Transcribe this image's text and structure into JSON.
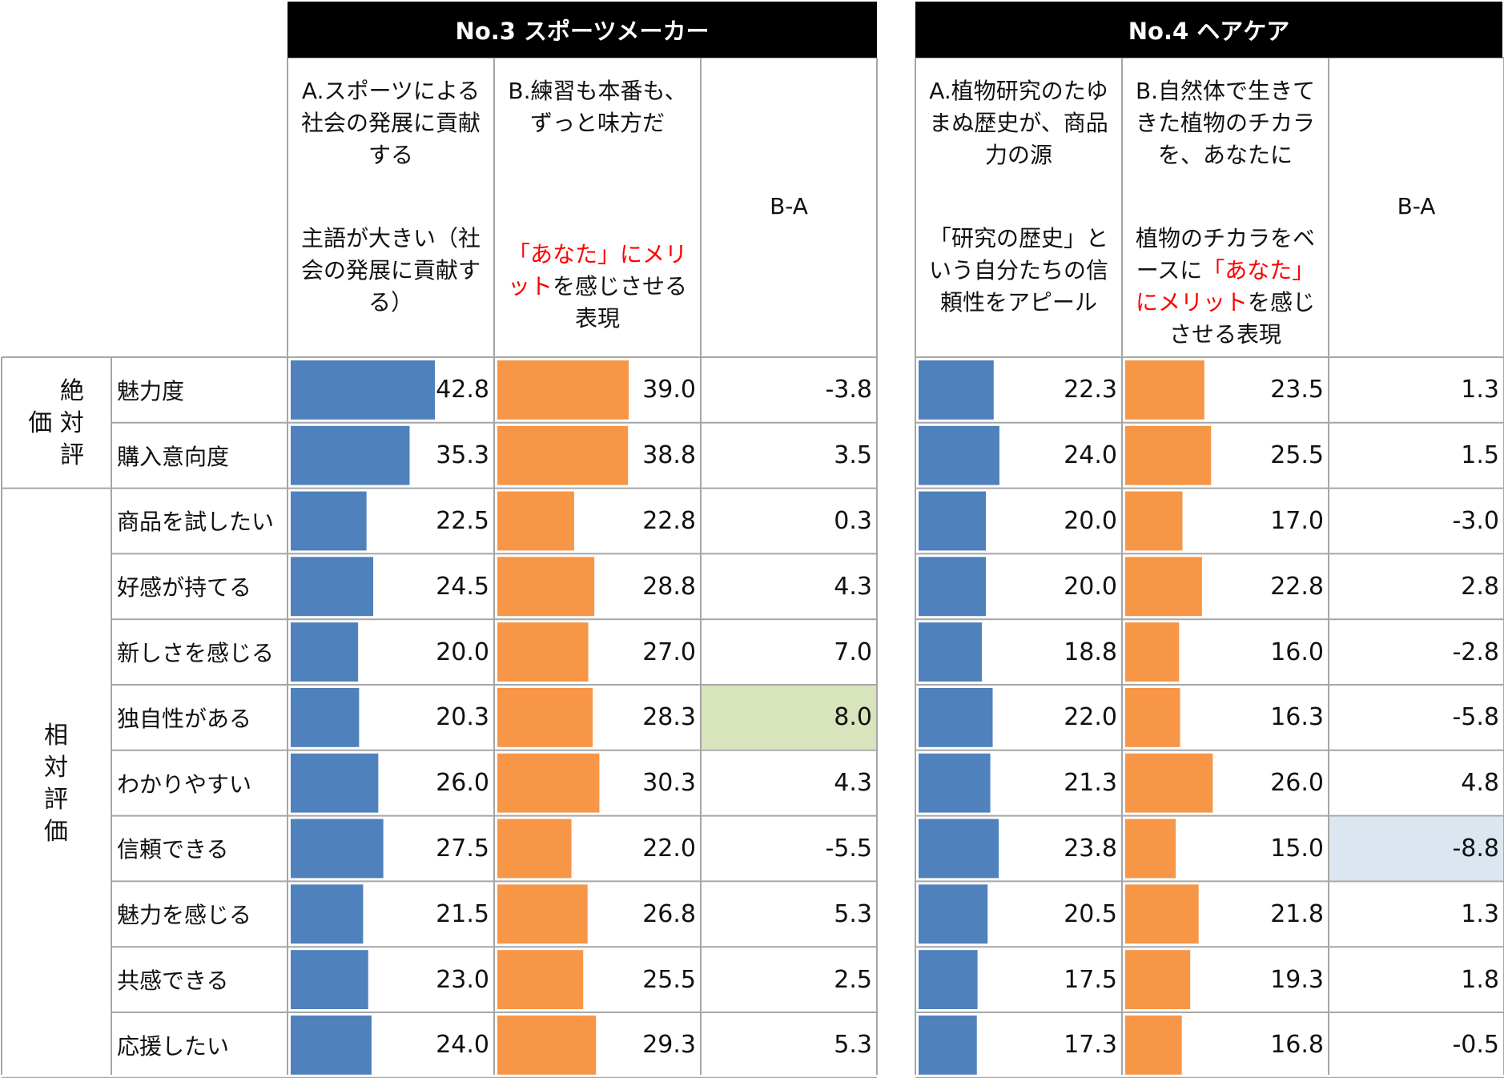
{
  "row_groups": [
    {
      "label": "絶対評価",
      "rows": [
        "魅力度",
        "購入意向度"
      ]
    },
    {
      "label": "相対評価",
      "rows": [
        "商品を試したい",
        "好感が持てる",
        "新しさを感じる",
        "独自性がある",
        "わかりやすい",
        "信頼できる",
        "魅力を感じる",
        "共感できる",
        "応援したい"
      ]
    }
  ],
  "colors": {
    "a_bar": "#4f81bd",
    "b_bar": "#f79646",
    "highlight_positive": "#d8e4bc",
    "highlight_negative": "#dce6f1",
    "header_bg": "#000000",
    "grid": "#a6a6a6"
  },
  "panels": [
    {
      "title": "No.3 スポーツメーカー",
      "col_a": {
        "h1": "A.スポーツによる社会の発展に貢献する",
        "h2": "主語が大きい（社会の発展に貢献する）"
      },
      "col_b": {
        "h1": "B.練習も本番も、ずっと味方だ",
        "h2_red": "「あなた」にメリット",
        "h2_rest": "を感じさせる表現"
      },
      "diff_header": "B-A"
    },
    {
      "title": "No.4 ヘアケア",
      "col_a": {
        "h1": "A.植物研究のたゆまぬ歴史が、商品力の源",
        "h2": "「研究の歴史」という自分たちの信頼性をアピール"
      },
      "col_b": {
        "h1": "B.自然体で生きてきた植物のチカラを、あなたに",
        "h2_pre": "植物のチカラをベースに",
        "h2_red": "「あなた」にメリット",
        "h2_rest": "を感じさせる表現"
      },
      "diff_header": "B-A"
    }
  ],
  "chart_data": [
    {
      "type": "bar",
      "title": "No.3 スポーツメーカー",
      "categories": [
        "魅力度",
        "購入意向度",
        "商品を試したい",
        "好感が持てる",
        "新しさを感じる",
        "独自性がある",
        "わかりやすい",
        "信頼できる",
        "魅力を感じる",
        "共感できる",
        "応援したい"
      ],
      "series": [
        {
          "name": "A.スポーツによる社会の発展に貢献する",
          "values": [
            42.8,
            35.3,
            22.5,
            24.5,
            20.0,
            20.3,
            26.0,
            27.5,
            21.5,
            23.0,
            24.0
          ]
        },
        {
          "name": "B.練習も本番も、ずっと味方だ",
          "values": [
            39.0,
            38.8,
            22.8,
            28.8,
            27.0,
            28.3,
            30.3,
            22.0,
            26.8,
            25.5,
            29.3
          ]
        }
      ],
      "diff": [
        -3.8,
        3.5,
        0.3,
        4.3,
        7.0,
        8.0,
        4.3,
        -5.5,
        5.3,
        2.5,
        5.3
      ],
      "highlight": {
        "positive": 5
      },
      "bar_max": 42.8
    },
    {
      "type": "bar",
      "title": "No.4 ヘアケア",
      "categories": [
        "魅力度",
        "購入意向度",
        "商品を試したい",
        "好感が持てる",
        "新しさを感じる",
        "独自性がある",
        "わかりやすい",
        "信頼できる",
        "魅力を感じる",
        "共感できる",
        "応援したい"
      ],
      "series": [
        {
          "name": "A.植物研究のたゆまぬ歴史が、商品力の源",
          "values": [
            22.3,
            24.0,
            20.0,
            20.0,
            18.8,
            22.0,
            21.3,
            23.8,
            20.5,
            17.5,
            17.3
          ]
        },
        {
          "name": "B.自然体で生きてきた植物のチカラを、あなたに",
          "values": [
            23.5,
            25.5,
            17.0,
            22.8,
            16.0,
            16.3,
            26.0,
            15.0,
            21.8,
            19.3,
            16.8
          ]
        }
      ],
      "diff": [
        1.3,
        1.5,
        -3.0,
        2.8,
        -2.8,
        -5.8,
        4.8,
        -8.8,
        1.3,
        1.8,
        -0.5
      ],
      "highlight": {
        "negative": 7
      },
      "bar_max": 42.8
    }
  ]
}
